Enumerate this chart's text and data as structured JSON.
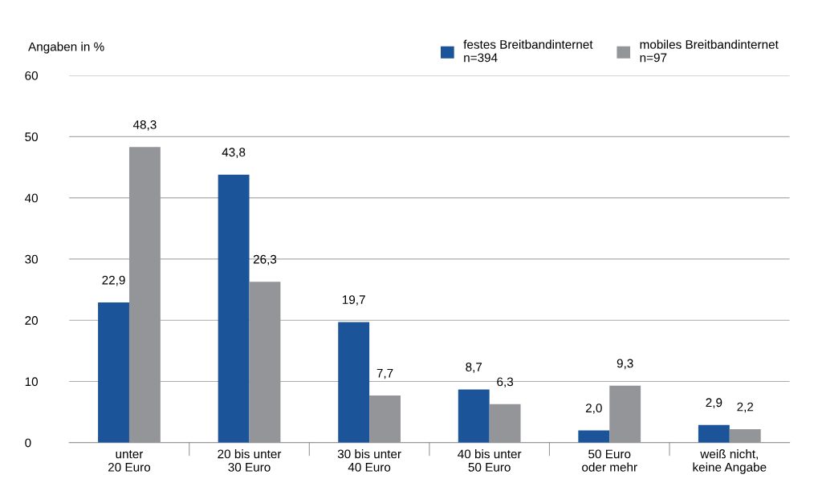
{
  "chart_data": {
    "type": "bar",
    "ylabel": "Angaben in %",
    "categories": [
      "unter\n20 Euro",
      "20 bis unter\n30 Euro",
      "30 bis unter\n40 Euro",
      "40 bis unter\n50 Euro",
      "50 Euro\noder mehr",
      "weiß nicht,\nkeine Angabe"
    ],
    "series": [
      {
        "name": "festes Breitbandinternet\nn=394",
        "color": "#1b5499",
        "values": [
          22.9,
          43.8,
          19.7,
          8.7,
          2.0,
          2.9
        ],
        "value_labels": [
          "22,9",
          "43,8",
          "19,7",
          "8,7",
          "2,0",
          "2,9"
        ]
      },
      {
        "name": "mobiles Breitbandinternet\nn=97",
        "color": "#939598",
        "values": [
          48.3,
          26.3,
          7.7,
          6.3,
          9.3,
          2.2
        ],
        "value_labels": [
          "48,3",
          "26,3",
          "7,7",
          "6,3",
          "9,3",
          "2,2"
        ]
      }
    ],
    "ylim": [
      0,
      60
    ],
    "yticks": [
      0,
      10,
      20,
      30,
      40,
      50,
      60
    ],
    "grid": "y",
    "legend": "top right"
  }
}
